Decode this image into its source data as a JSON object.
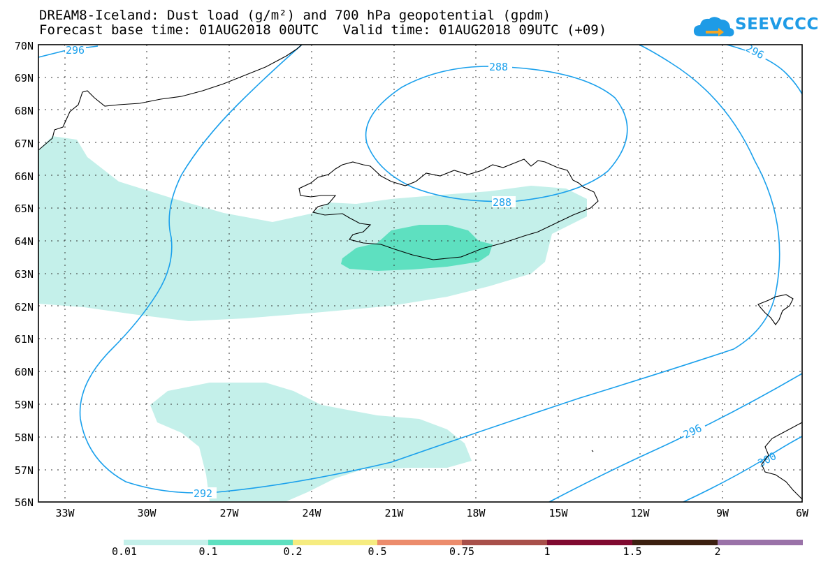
{
  "title": {
    "line1": "DREAM8-Iceland: Dust load (g/m²) and 700 hPa geopotential (gpdm)",
    "line2": "Forecast base time: 01AUG2018 00UTC   Valid time: 01AUG2018 09UTC (+09)"
  },
  "logo": {
    "text": "SEEVCCC",
    "color": "#1e9be6",
    "icon": "cloud-arrow-icon"
  },
  "map": {
    "lat_labels": [
      "70N",
      "69N",
      "68N",
      "67N",
      "66N",
      "65N",
      "64N",
      "63N",
      "62N",
      "61N",
      "60N",
      "59N",
      "58N",
      "57N",
      "56N"
    ],
    "lon_labels": [
      "33W",
      "30W",
      "27W",
      "24W",
      "21W",
      "18W",
      "15W",
      "12W",
      "9W",
      "6W"
    ],
    "contour_labels": [
      "296",
      "296",
      "288",
      "288",
      "292",
      "296",
      "300"
    ],
    "contour_color": "#1aa0ec",
    "coast_color": "#000000",
    "grid": "dotted"
  },
  "colorbar": {
    "colors": [
      "#c4f0ea",
      "#5ee0c0",
      "#f6ec80",
      "#ec8c6c",
      "#a8504a",
      "#800a30",
      "#3c2010",
      "#9a72a8"
    ],
    "labels": [
      "0.01",
      "0.1",
      "0.2",
      "0.5",
      "0.75",
      "1",
      "1.5",
      "2"
    ]
  }
}
